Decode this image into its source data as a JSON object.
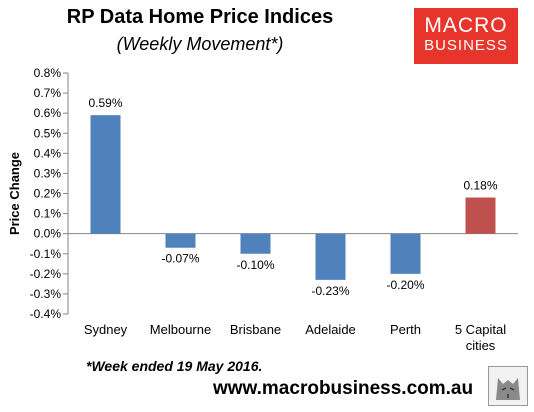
{
  "header": {
    "title": "RP Data Home Price Indices",
    "subtitle": "(Weekly Movement*)"
  },
  "logo": {
    "line1": "MACRO",
    "line2": "BUSINESS",
    "color": "#e8352b"
  },
  "footnote": "*Week ended 19 May 2016.",
  "website": "www.macrobusiness.com.au",
  "chart_data": {
    "type": "bar",
    "ylabel": "Price Change",
    "ylim": [
      -0.4,
      0.8
    ],
    "ytick_step": 0.1,
    "grid": false,
    "categories": [
      [
        "Sydney"
      ],
      [
        "Melbourne"
      ],
      [
        "Brisbane"
      ],
      [
        "Adelaide"
      ],
      [
        "Perth"
      ],
      [
        "5 Capital",
        "cities"
      ]
    ],
    "values": [
      0.59,
      -0.07,
      -0.1,
      -0.23,
      -0.2,
      0.18
    ],
    "data_labels": [
      "0.59%",
      "-0.07%",
      "-0.10%",
      "-0.23%",
      "-0.20%",
      "0.18%"
    ],
    "colors": [
      "#4f81bd",
      "#4f81bd",
      "#4f81bd",
      "#4f81bd",
      "#4f81bd",
      "#c0504d"
    ]
  }
}
